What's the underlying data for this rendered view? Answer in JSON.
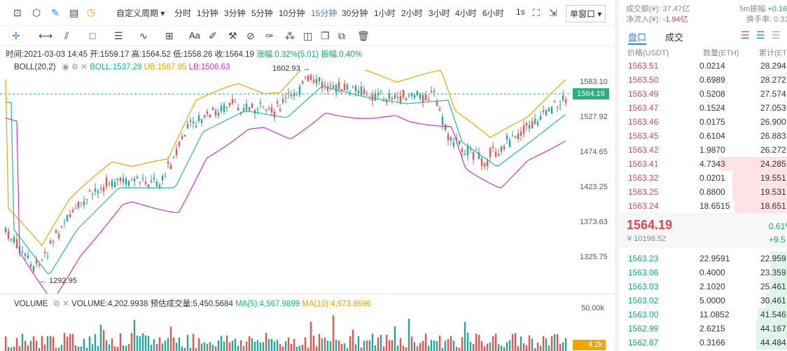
{
  "toolbar": {
    "custom_period": "自定义周期 ▾",
    "periods": [
      "分时",
      "1分钟",
      "3分钟",
      "5分钟",
      "10分钟",
      "15分钟",
      "30分钟",
      "1小时",
      "2小时",
      "3小时",
      "4小时",
      "6小时"
    ],
    "active_period": "15分钟",
    "seconds_label": "1s",
    "window_select": "单窗口 ▾",
    "aa_label": "Aa"
  },
  "info_line": {
    "time": "时间:2021-03-03 14:45",
    "open": "开:1559.17",
    "high": "高:1564.52",
    "low": "低:1558.26",
    "close": "收:1564.19",
    "change": "涨幅:0.32%(5.01)",
    "amplitude": "振幅:0.40%"
  },
  "boll": {
    "name": "BOLL(20,2)",
    "mid": "BOLL:1537.29",
    "ub": "UB:1567.95",
    "lb": "LB:1506.63"
  },
  "volume": {
    "name": "VOLUME",
    "value": "VOLUME:4,202.9938",
    "estimate": "预估成交量:5,450.5684",
    "ma5": "MA(5):4,567.9899",
    "ma10": "MA(10):4,673.8696",
    "axis_label": "50.00k",
    "current_label": "4.2k"
  },
  "chart": {
    "price_axis": [
      "1583.10",
      "1527.92",
      "1474.65",
      "1423.25",
      "1373.63",
      "1325.75"
    ],
    "current_price": "1564.19",
    "high_mark": "1602.93 →",
    "low_mark": "← 1292.95"
  },
  "right_panel": {
    "turnover": "成交额(¥): 37.47亿",
    "net_inflow_label": "净流入(¥):",
    "net_inflow_value": "-1.94亿",
    "five_min_label": "5m振幅",
    "five_min_value": "+0.16",
    "turnover_rate": "换手率",
    "turnover_rate_value": "0.33",
    "tab_book": "盘口",
    "tab_trades": "成交",
    "col_price": "价格(USDT)",
    "col_qty": "数量(ETH)",
    "col_total": "累计(ET",
    "asks": [
      {
        "price": "1563.51",
        "qty": "0.0214",
        "total": "28.294"
      },
      {
        "price": "1563.50",
        "qty": "0.6989",
        "total": "28.272"
      },
      {
        "price": "1563.49",
        "qty": "0.5208",
        "total": "27.574"
      },
      {
        "price": "1563.47",
        "qty": "0.1524",
        "total": "27.053"
      },
      {
        "price": "1563.46",
        "qty": "0.0175",
        "total": "26.900"
      },
      {
        "price": "1563.45",
        "qty": "0.6104",
        "total": "26.883"
      },
      {
        "price": "1563.42",
        "qty": "1.9870",
        "total": "26.272"
      },
      {
        "price": "1563.41",
        "qty": "4.7343",
        "total": "24.285"
      },
      {
        "price": "1563.32",
        "qty": "0.0201",
        "total": "19.551"
      },
      {
        "price": "1563.25",
        "qty": "0.8800",
        "total": "19.531"
      },
      {
        "price": "1563.24",
        "qty": "18.6515",
        "total": "18.651"
      }
    ],
    "last_price": "1564.19",
    "last_cny": "¥ 10198.52",
    "last_pct": "0.61%",
    "last_diff": "+9.5",
    "bids": [
      {
        "price": "1563.23",
        "qty": "22.9591",
        "total": "22.959"
      },
      {
        "price": "1563.06",
        "qty": "0.4000",
        "total": "23.359"
      },
      {
        "price": "1563.03",
        "qty": "2.1020",
        "total": "25.461"
      },
      {
        "price": "1563.02",
        "qty": "5.0000",
        "total": "30.461"
      },
      {
        "price": "1563.00",
        "qty": "11.0852",
        "total": "41.546"
      },
      {
        "price": "1562.99",
        "qty": "2.6215",
        "total": "44.167"
      },
      {
        "price": "1562.87",
        "qty": "0.3166",
        "total": "44.484"
      }
    ],
    "colors": {
      "ask": "#e0464b",
      "bid": "#12a86f",
      "accent": "#2f7ff5"
    }
  }
}
